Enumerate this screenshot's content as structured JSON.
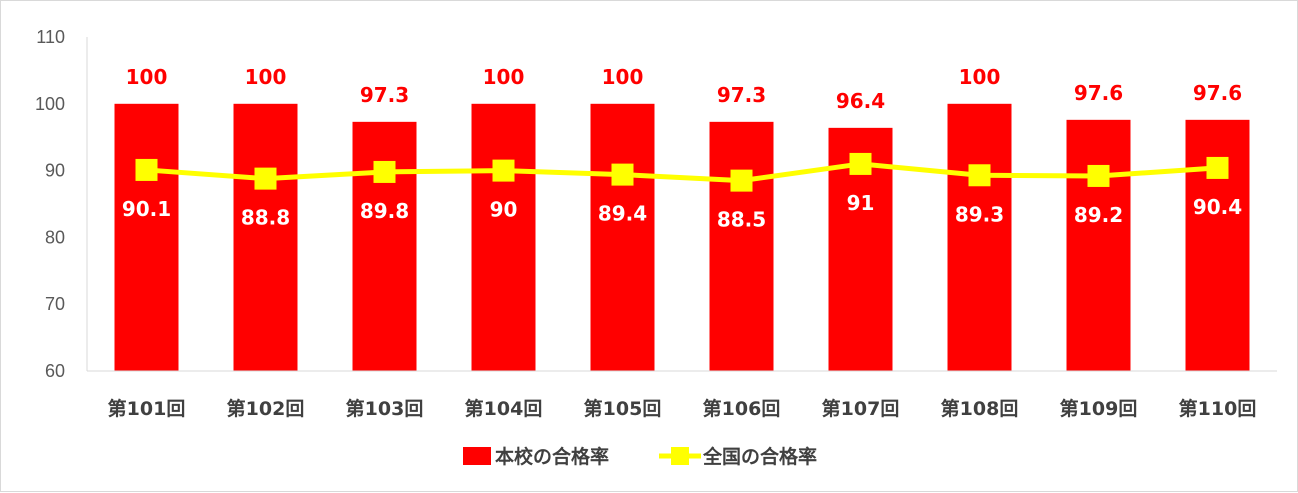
{
  "chart_data": {
    "type": "bar",
    "categories": [
      "第101回",
      "第102回",
      "第103回",
      "第104回",
      "第105回",
      "第106回",
      "第107回",
      "第108回",
      "第109回",
      "第110回"
    ],
    "series": [
      {
        "name": "本校の合格率",
        "kind": "bar",
        "color": "#ff0000",
        "label_color": "#ff0000",
        "values": [
          100,
          100,
          97.3,
          100,
          100,
          97.3,
          96.4,
          100,
          97.6,
          97.6
        ]
      },
      {
        "name": "全国の合格率",
        "kind": "line",
        "color": "#ffff00",
        "label_color": "#ffffff",
        "values": [
          90.1,
          88.8,
          89.8,
          90,
          89.4,
          88.5,
          91,
          89.3,
          89.2,
          90.4
        ]
      }
    ],
    "ylim": [
      60,
      110
    ],
    "yticks": [
      60,
      70,
      80,
      90,
      100,
      110
    ],
    "grid": false,
    "legend_position": "bottom",
    "axis_color": "#d9d9d9"
  }
}
